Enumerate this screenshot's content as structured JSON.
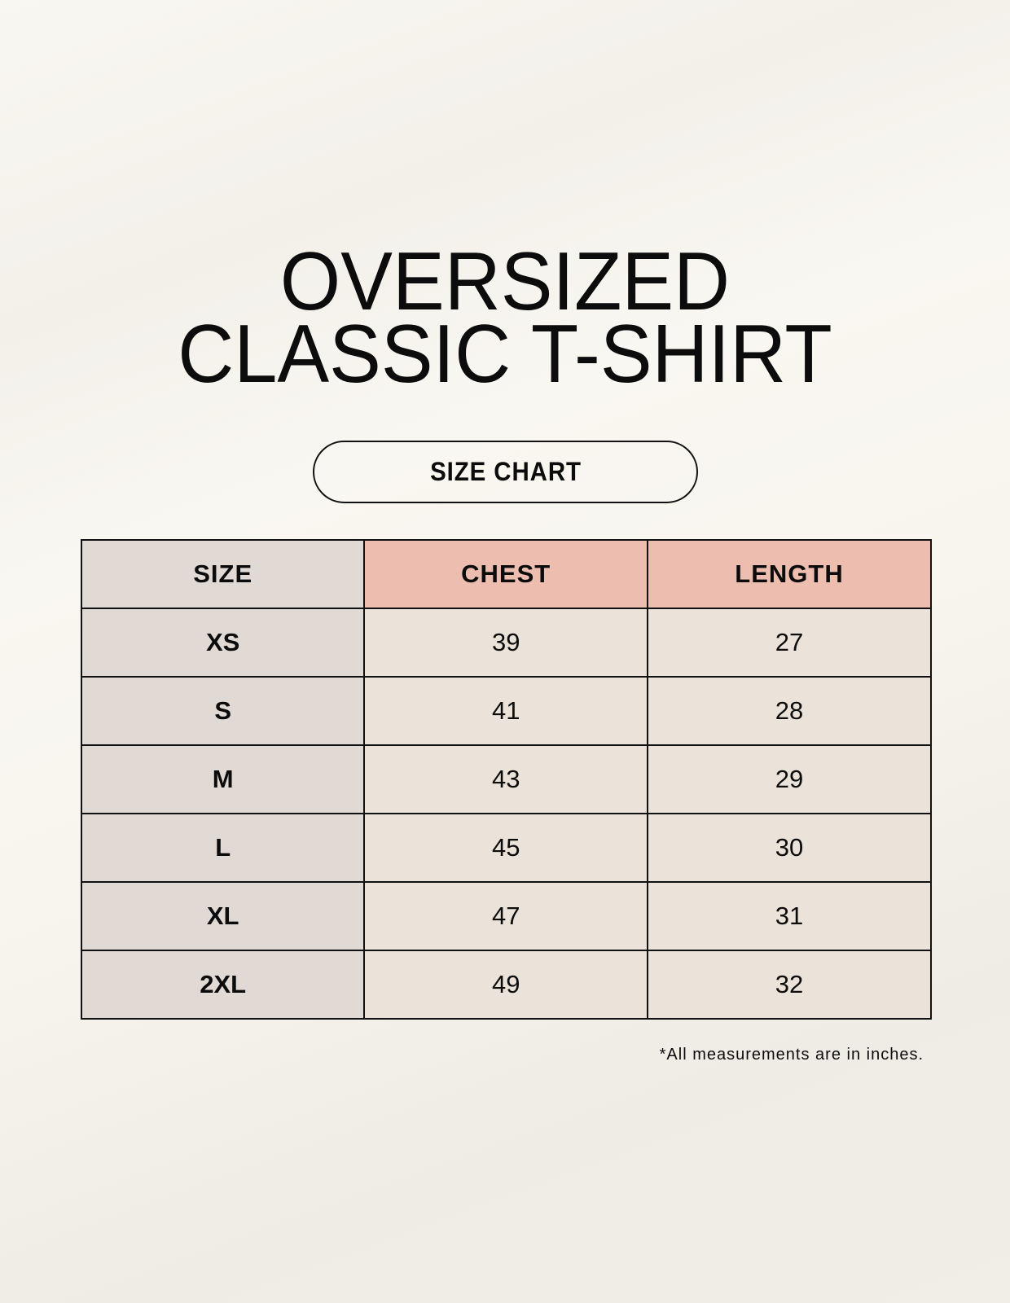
{
  "title": {
    "line1": "OVERSIZED",
    "line2": "CLASSIC T-SHIRT"
  },
  "badge": "SIZE CHART",
  "table": {
    "headers": [
      "SIZE",
      "CHEST",
      "LENGTH"
    ],
    "rows": [
      {
        "size": "XS",
        "chest": "39",
        "length": "27"
      },
      {
        "size": "S",
        "chest": "41",
        "length": "28"
      },
      {
        "size": "M",
        "chest": "43",
        "length": "29"
      },
      {
        "size": "L",
        "chest": "45",
        "length": "30"
      },
      {
        "size": "XL",
        "chest": "47",
        "length": "31"
      },
      {
        "size": "2XL",
        "chest": "49",
        "length": "32"
      }
    ]
  },
  "footnote": "*All measurements are in inches.",
  "colors": {
    "background": "#f8f6f0",
    "size_column": "#e0d9d4",
    "header_accent": "#edbdb0",
    "cell": "#ebe3d9"
  }
}
